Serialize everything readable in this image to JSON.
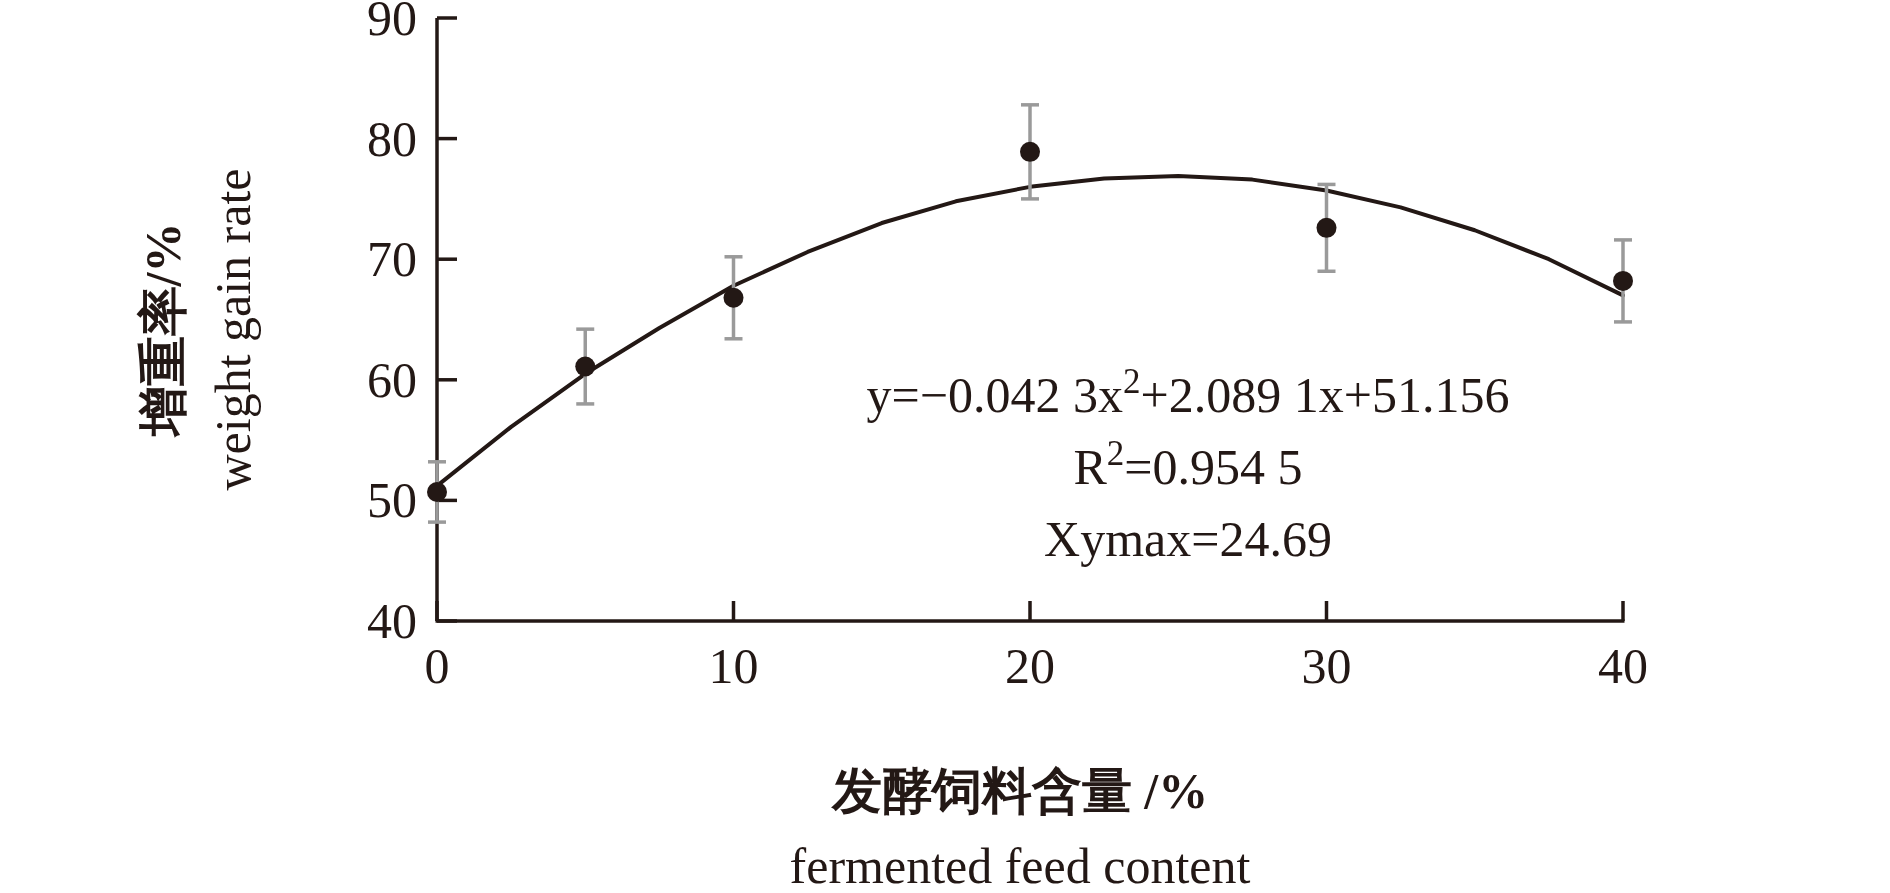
{
  "chart_data": {
    "type": "scatter",
    "xlabel": "发酵饲料含量 /%\nfermented feed content",
    "ylabel": "增重率/%\nweight gain rate",
    "x": [
      0,
      5,
      10,
      20,
      30,
      40
    ],
    "series": [
      {
        "color": "#231815",
        "marker": "circle",
        "values": [
          50.7,
          61.1,
          66.8,
          78.9,
          72.6,
          68.2
        ],
        "errors": [
          2.5,
          3.1,
          3.4,
          3.9,
          3.6,
          3.4
        ]
      },
      {
        "type": "line",
        "color": "#231815",
        "marker": "none",
        "x": [
          0,
          2.5,
          5,
          7.5,
          10,
          12.5,
          15,
          17.5,
          20,
          22.5,
          25,
          27.5,
          30,
          32.5,
          35,
          37.5,
          40
        ],
        "values": [
          51.2,
          56.1,
          60.5,
          64.3,
          67.8,
          70.6,
          73.0,
          74.8,
          76.0,
          76.7,
          76.9,
          76.6,
          75.7,
          74.3,
          72.4,
          70.0,
          67.0
        ]
      }
    ],
    "xlim": [
      0,
      40
    ],
    "ylim": [
      40,
      90
    ],
    "xticks": [
      0,
      10,
      20,
      30,
      40
    ],
    "yticks": [
      40,
      50,
      60,
      70,
      80,
      90
    ],
    "grid": false,
    "annotations": [
      "y=−0.042 3x$^{2}$+2.089 1x+51.156",
      "R$^{2}$=0.954 5",
      "Xymax=24.69"
    ]
  }
}
